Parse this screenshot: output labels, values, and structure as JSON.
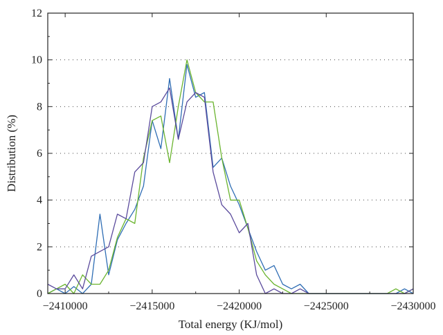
{
  "chart_data": {
    "type": "line",
    "xlabel": "Total energy (KJ/mol)",
    "ylabel": "Distribution (%)",
    "xlim": [
      -2409000,
      -2430000
    ],
    "ylim": [
      0,
      12
    ],
    "x_ticks": [
      -2410000,
      -2415000,
      -2420000,
      -2425000,
      -2430000
    ],
    "x_tick_labels": [
      "−2410000",
      "−2415000",
      "−2420000",
      "−2425000",
      "−2430000"
    ],
    "y_ticks": [
      0,
      2,
      4,
      6,
      8,
      10,
      12
    ],
    "y_tick_labels": [
      "0",
      "2",
      "4",
      "6",
      "8",
      "10",
      "12"
    ],
    "grid": "horizontal-dotted",
    "series": [
      {
        "color": "#2e6db4",
        "x": [
          -2409000,
          -2409500,
          -2410000,
          -2410500,
          -2411000,
          -2411500,
          -2412000,
          -2412500,
          -2413000,
          -2413500,
          -2414000,
          -2414500,
          -2415000,
          -2415500,
          -2416000,
          -2416500,
          -2417000,
          -2417500,
          -2418000,
          -2418500,
          -2419000,
          -2419500,
          -2420000,
          -2420500,
          -2421000,
          -2421500,
          -2422000,
          -2422500,
          -2423000,
          -2423500,
          -2424000,
          -2429000,
          -2429500,
          -2430000
        ],
        "values": [
          0.0,
          0.2,
          0.0,
          0.3,
          0.0,
          0.4,
          3.4,
          0.8,
          2.3,
          3.0,
          3.6,
          4.6,
          7.4,
          6.2,
          9.2,
          6.6,
          9.8,
          8.4,
          8.6,
          5.4,
          5.8,
          4.6,
          3.8,
          2.8,
          1.8,
          1.0,
          1.2,
          0.4,
          0.2,
          0.4,
          0.0,
          0.0,
          0.2,
          0.0
        ]
      },
      {
        "color": "#6ab42e",
        "x": [
          -2409000,
          -2409500,
          -2410000,
          -2410500,
          -2411000,
          -2411500,
          -2412000,
          -2412500,
          -2413000,
          -2413500,
          -2414000,
          -2414500,
          -2415000,
          -2415500,
          -2416000,
          -2416500,
          -2417000,
          -2417500,
          -2418000,
          -2418500,
          -2419000,
          -2419500,
          -2420000,
          -2420500,
          -2421000,
          -2421500,
          -2422000,
          -2422500,
          -2423000,
          -2423500,
          -2424000,
          -2428500,
          -2429000,
          -2429500,
          -2430000
        ],
        "values": [
          0.0,
          0.2,
          0.4,
          0.0,
          0.8,
          0.4,
          0.4,
          1.0,
          2.4,
          3.2,
          3.0,
          5.8,
          7.4,
          7.6,
          5.6,
          8.0,
          10.0,
          8.6,
          8.2,
          8.2,
          5.8,
          4.0,
          4.0,
          2.8,
          1.4,
          0.8,
          0.4,
          0.2,
          0.0,
          0.0,
          0.0,
          0.0,
          0.2,
          0.0,
          0.2
        ]
      },
      {
        "color": "#5a4a9c",
        "x": [
          -2409000,
          -2409500,
          -2410000,
          -2410500,
          -2411000,
          -2411500,
          -2412000,
          -2412500,
          -2413000,
          -2413500,
          -2414000,
          -2414500,
          -2415000,
          -2415500,
          -2416000,
          -2416500,
          -2417000,
          -2417500,
          -2418000,
          -2418500,
          -2419000,
          -2419500,
          -2420000,
          -2420500,
          -2421000,
          -2421500,
          -2422000,
          -2422500,
          -2423000,
          -2423500,
          -2424000,
          -2429500,
          -2430000
        ],
        "values": [
          0.4,
          0.2,
          0.2,
          0.8,
          0.2,
          1.6,
          1.8,
          2.0,
          3.4,
          3.2,
          5.2,
          5.6,
          8.0,
          8.2,
          8.8,
          6.6,
          8.2,
          8.6,
          8.4,
          5.2,
          3.8,
          3.4,
          2.6,
          3.0,
          0.8,
          0.0,
          0.2,
          0.0,
          0.0,
          0.2,
          0.0,
          0.0,
          0.2
        ]
      }
    ]
  }
}
